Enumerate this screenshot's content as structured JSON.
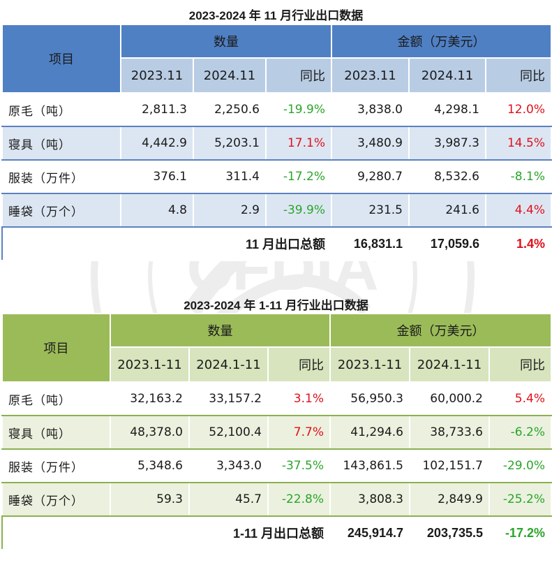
{
  "table1": {
    "title": "2023-2024 年 11 月行业出口数据",
    "item_header": "项目",
    "qty_group": "数量",
    "amt_group": "金额（万美元）",
    "sub_headers": [
      "2023.11",
      "2024.11",
      "同比",
      "2023.11",
      "2024.11",
      "同比"
    ],
    "rows": [
      {
        "label": "原毛（吨）",
        "q1": "2,811.3",
        "q2": "2,250.6",
        "qy": "-19.9%",
        "a1": "3,838.0",
        "a2": "4,298.1",
        "ay": "12.0%"
      },
      {
        "label": "寝具（吨）",
        "q1": "4,442.9",
        "q2": "5,203.1",
        "qy": "17.1%",
        "a1": "3,480.9",
        "a2": "3,987.3",
        "ay": "14.5%"
      },
      {
        "label": "服装（万件）",
        "q1": "376.1",
        "q2": "311.4",
        "qy": "-17.2%",
        "a1": "9,280.7",
        "a2": "8,532.6",
        "ay": "-8.1%"
      },
      {
        "label": "睡袋（万个）",
        "q1": "4.8",
        "q2": "2.9",
        "qy": "-39.9%",
        "a1": "231.5",
        "a2": "241.6",
        "ay": "4.4%"
      }
    ],
    "total": {
      "label": "11 月出口总额",
      "a1": "16,831.1",
      "a2": "17,059.6",
      "ay": "1.4%"
    }
  },
  "table2": {
    "title": "2023-2024 年 1-11 月行业出口数据",
    "item_header": "项目",
    "qty_group": "数量",
    "amt_group": "金额（万美元）",
    "sub_headers": [
      "2023.1-11",
      "2024.1-11",
      "同比",
      "2023.1-11",
      "2024.1-11",
      "同比"
    ],
    "rows": [
      {
        "label": "原毛（吨）",
        "q1": "32,163.2",
        "q2": "33,157.2",
        "qy": "3.1%",
        "a1": "56,950.3",
        "a2": "60,000.2",
        "ay": "5.4%"
      },
      {
        "label": "寝具（吨）",
        "q1": "48,378.0",
        "q2": "52,100.4",
        "qy": "7.7%",
        "a1": "41,294.6",
        "a2": "38,733.6",
        "ay": "-6.2%"
      },
      {
        "label": "服装（万件）",
        "q1": "5,348.6",
        "q2": "3,343.0",
        "qy": "-37.5%",
        "a1": "143,861.5",
        "a2": "102,151.7",
        "ay": "-29.0%"
      },
      {
        "label": "睡袋（万个）",
        "q1": "59.3",
        "q2": "45.7",
        "qy": "-22.8%",
        "a1": "3,808.3",
        "a2": "2,849.9",
        "ay": "-25.2%"
      }
    ],
    "total": {
      "label": "1-11 月出口总额",
      "a1": "245,914.7",
      "a2": "203,735.5",
      "ay": "-17.2%"
    }
  },
  "colors": {
    "table1_header": "#4f80c4",
    "table1_subheader": "#b8cce4",
    "table1_alt_row": "#dce6f2",
    "table2_header": "#9bbb59",
    "table2_subheader": "#d7e4bd",
    "table2_alt_row": "#ebf1de",
    "increase": "#e0101b",
    "decrease": "#2aa52a"
  },
  "watermark": {
    "icon": "association-seal-icon",
    "text": "CHINA FEATHER AND DOWN INDUSTRIAL ASSOCIATION"
  }
}
